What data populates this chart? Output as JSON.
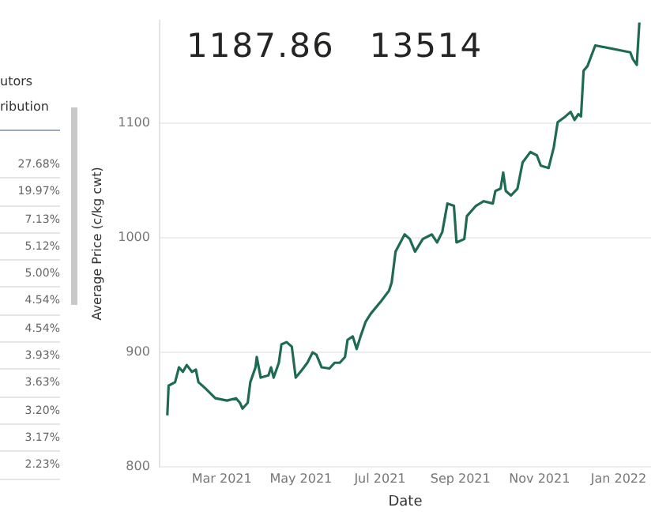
{
  "chart_data": {
    "type": "line",
    "xlabel": "Date",
    "ylabel": "Average Price (c/kg cwt)",
    "annotations": [
      "1187.86",
      "13514",
      "utors",
      "ribution",
      "27.68%",
      "19.97%",
      "7.13%",
      "5.12%",
      "5.00%",
      "4.54%",
      "4.54%",
      "3.93%",
      "3.63%",
      "3.20%",
      "3.17%",
      "2.23%"
    ],
    "x": [
      "2021-01-18",
      "2021-01-19",
      "2021-01-24",
      "2021-01-27",
      "2021-01-30",
      "2021-02-02",
      "2021-02-06",
      "2021-02-09",
      "2021-02-11",
      "2021-02-16",
      "2021-02-24",
      "2021-03-05",
      "2021-03-12",
      "2021-03-15",
      "2021-03-17",
      "2021-03-21",
      "2021-03-23",
      "2021-03-27",
      "2021-03-28",
      "2021-03-31",
      "2021-04-06",
      "2021-04-08",
      "2021-04-10",
      "2021-04-14",
      "2021-04-16",
      "2021-04-20",
      "2021-04-24",
      "2021-04-27",
      "2021-05-02",
      "2021-05-06",
      "2021-05-10",
      "2021-05-13",
      "2021-05-17",
      "2021-05-23",
      "2021-05-27",
      "2021-05-31",
      "2021-06-04",
      "2021-06-06",
      "2021-06-10",
      "2021-06-13",
      "2021-06-16",
      "2021-06-20",
      "2021-06-24",
      "2021-07-02",
      "2021-07-08",
      "2021-07-10",
      "2021-07-13",
      "2021-07-20",
      "2021-07-24",
      "2021-07-28",
      "2021-08-03",
      "2021-08-10",
      "2021-08-14",
      "2021-08-18",
      "2021-08-22",
      "2021-08-27",
      "2021-08-29",
      "2021-09-04",
      "2021-09-06",
      "2021-09-13",
      "2021-09-19",
      "2021-09-26",
      "2021-09-28",
      "2021-10-02",
      "2021-10-04",
      "2021-10-06",
      "2021-10-10",
      "2021-10-15",
      "2021-10-19",
      "2021-10-25",
      "2021-10-30",
      "2021-11-02",
      "2021-11-08",
      "2021-11-12",
      "2021-11-15",
      "2021-11-21",
      "2021-11-25",
      "2021-11-28",
      "2021-12-01",
      "2021-12-03",
      "2021-12-05",
      "2021-12-08",
      "2021-12-14",
      "2022-01-10",
      "2022-01-12",
      "2022-01-15",
      "2022-01-17"
    ],
    "series": [
      {
        "color": "#1e6b52",
        "values": [
          845,
          871,
          874,
          887,
          883,
          889,
          883,
          885,
          874,
          869,
          860,
          858,
          860,
          856,
          851,
          856,
          874,
          887,
          896,
          878,
          880,
          887,
          878,
          891,
          907,
          909,
          905,
          878,
          885,
          891,
          900,
          898,
          887,
          886,
          891,
          891,
          896,
          911,
          914,
          903,
          914,
          927,
          934,
          945,
          954,
          961,
          988,
          1003,
          999,
          988,
          999,
          1003,
          996,
          1005,
          1030,
          1028,
          996,
          999,
          1019,
          1028,
          1032,
          1030,
          1041,
          1043,
          1057,
          1041,
          1037,
          1043,
          1066,
          1075,
          1072,
          1063,
          1061,
          1079,
          1101,
          1106,
          1110,
          1103,
          1108,
          1106,
          1146,
          1150,
          1168,
          1162,
          1156,
          1151,
          1188
        ]
      }
    ],
    "xlim": [
      "2021-01-12",
      "2022-01-26"
    ],
    "xticks": [
      {
        "value": "2021-03-01",
        "label": "Mar 2021"
      },
      {
        "value": "2021-05-01",
        "label": "May 2021"
      },
      {
        "value": "2021-07-01",
        "label": "Jul 2021"
      },
      {
        "value": "2021-09-01",
        "label": "Sep 2021"
      },
      {
        "value": "2021-11-01",
        "label": "Nov 2021"
      },
      {
        "value": "2022-01-01",
        "label": "Jan 2022"
      }
    ],
    "ylim": [
      800,
      1190
    ],
    "yticks": [
      800,
      900,
      1000,
      1100
    ],
    "grid": "y",
    "legend": false,
    "marker": "none",
    "line_style": "solid"
  }
}
